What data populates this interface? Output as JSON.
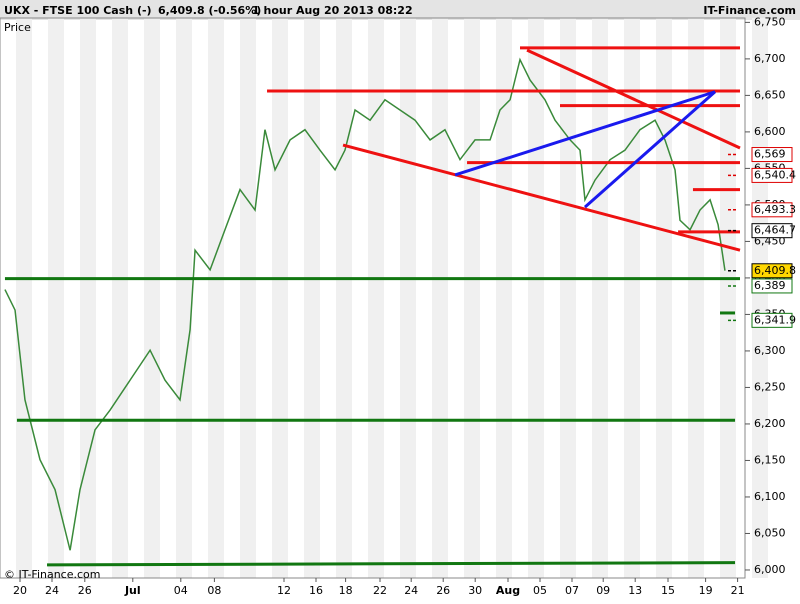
{
  "chart_data": {
    "type": "line",
    "symbol": "UKX - FTSE 100 Cash (-)",
    "quote": "6,409.8 (-0.56%)",
    "period": "1 hour  Aug 20 2013 08:22",
    "brand": "IT-Finance.com",
    "y_label": "Price",
    "copyright": "© IT-Finance.com",
    "xlim": [
      0,
      46.5
    ],
    "ylim": [
      5989,
      6756
    ],
    "xticks": [
      {
        "value": 1.25,
        "label": "20"
      },
      {
        "value": 3.25,
        "label": "24"
      },
      {
        "value": 5.3,
        "label": "26"
      },
      {
        "value": 8.3,
        "label": "Jul"
      },
      {
        "value": 11.3,
        "label": "04"
      },
      {
        "value": 13.4,
        "label": "08"
      },
      {
        "value": 17.75,
        "label": "12"
      },
      {
        "value": 19.75,
        "label": "16"
      },
      {
        "value": 21.6,
        "label": "18"
      },
      {
        "value": 23.75,
        "label": "22"
      },
      {
        "value": 25.7,
        "label": "24"
      },
      {
        "value": 27.7,
        "label": "26"
      },
      {
        "value": 29.7,
        "label": "30"
      },
      {
        "value": 31.75,
        "label": "Aug"
      },
      {
        "value": 33.75,
        "label": "05"
      },
      {
        "value": 35.75,
        "label": "07"
      },
      {
        "value": 37.7,
        "label": "09"
      },
      {
        "value": 39.7,
        "label": "13"
      },
      {
        "value": 41.75,
        "label": "15"
      },
      {
        "value": 44.1,
        "label": "19"
      },
      {
        "value": 46.1,
        "label": "21"
      }
    ],
    "yticks": [
      {
        "value": 6000,
        "label": "6,000"
      },
      {
        "value": 6050,
        "label": "6,050"
      },
      {
        "value": 6100,
        "label": "6,100"
      },
      {
        "value": 6150,
        "label": "6,150"
      },
      {
        "value": 6200,
        "label": "6,200"
      },
      {
        "value": 6250,
        "label": "6,250"
      },
      {
        "value": 6300,
        "label": "6,300"
      },
      {
        "value": 6350,
        "label": "6,350"
      },
      {
        "value": 6400,
        "label": "6,400"
      },
      {
        "value": 6450,
        "label": "6,450"
      },
      {
        "value": 6500,
        "label": "6,500"
      },
      {
        "value": 6550,
        "label": "6,550"
      },
      {
        "value": 6600,
        "label": "6,600"
      },
      {
        "value": 6650,
        "label": "6,650"
      },
      {
        "value": 6700,
        "label": "6,700"
      },
      {
        "value": 6750,
        "label": "6,750"
      }
    ],
    "series": [
      {
        "color": "#3a8a3a",
        "x": [
          0.31,
          0.94,
          1.56,
          2.5,
          3.44,
          4.38,
          5,
          5.94,
          6.88,
          8.13,
          9.38,
          10.31,
          11.25,
          11.88,
          12.19,
          13.13,
          14.06,
          15,
          15.94,
          16.56,
          17.19,
          18.13,
          19.06,
          20,
          20.94,
          21.56,
          22.19,
          23.13,
          24.06,
          25,
          25.94,
          26.88,
          27.81,
          28.75,
          29.69,
          30.63,
          31.25,
          31.88,
          32.5,
          33.13,
          34.06,
          34.69,
          35.63,
          36.25,
          36.56,
          37.19,
          38.13,
          39.06,
          40,
          40.94,
          41.56,
          42.19,
          42.5,
          43.13,
          43.75,
          44.38,
          44.88,
          45.31
        ],
        "values": [
          6384,
          6356,
          6233,
          6151,
          6110,
          6027,
          6110,
          6192,
          6219,
          6260,
          6301,
          6260,
          6233,
          6329,
          6438,
          6411,
          6466,
          6521,
          6493,
          6603,
          6548,
          6589,
          6603,
          6575,
          6548,
          6575,
          6630,
          6616,
          6644,
          6630,
          6616,
          6589,
          6603,
          6562,
          6589,
          6589,
          6630,
          6644,
          6699,
          6671,
          6644,
          6616,
          6589,
          6575,
          6507,
          6534,
          6562,
          6575,
          6603,
          6616,
          6589,
          6548,
          6479,
          6466,
          6493,
          6507,
          6473,
          6410
        ]
      }
    ],
    "trendlines": [
      {
        "x": [
          16.69,
          46.25
        ],
        "y": [
          6656,
          6656
        ],
        "color": "#ee1111"
      },
      {
        "x": [
          32.5,
          46.25
        ],
        "y": [
          6715,
          6715
        ],
        "color": "#ee1111"
      },
      {
        "x": [
          32.94,
          46.25
        ],
        "y": [
          6712,
          6578
        ],
        "color": "#ee1111"
      },
      {
        "x": [
          35,
          46.25
        ],
        "y": [
          6636,
          6636
        ],
        "color": "#ee1111"
      },
      {
        "x": [
          21.44,
          46.25
        ],
        "y": [
          6582,
          6438
        ],
        "color": "#ee1111"
      },
      {
        "x": [
          29.19,
          46.25
        ],
        "y": [
          6558,
          6558
        ],
        "color": "#ee1111"
      },
      {
        "x": [
          43.31,
          46.25
        ],
        "y": [
          6521,
          6521
        ],
        "color": "#ee1111"
      },
      {
        "x": [
          42.38,
          46.25
        ],
        "y": [
          6463,
          6463
        ],
        "color": "#ee1111"
      },
      {
        "x": [
          28.44,
          44.69
        ],
        "y": [
          6541,
          6655
        ],
        "color": "#1a1aee"
      },
      {
        "x": [
          36.56,
          44.69
        ],
        "y": [
          6497,
          6655
        ],
        "color": "#1a1aee"
      },
      {
        "x": [
          0.31,
          46.25
        ],
        "y": [
          6399,
          6399
        ],
        "color": "#117711"
      },
      {
        "x": [
          1.06,
          45.94
        ],
        "y": [
          6205,
          6205
        ],
        "color": "#117711"
      },
      {
        "x": [
          2.94,
          45.94
        ],
        "y": [
          6007,
          6010
        ],
        "color": "#117711"
      },
      {
        "x": [
          45,
          45.94
        ],
        "y": [
          6352,
          6352
        ],
        "color": "#117711"
      }
    ],
    "price_labels": [
      {
        "value": 6569,
        "label": "6,569",
        "color": "#dd0000",
        "background": "#ffffff"
      },
      {
        "value": 6540.4,
        "label": "6,540.4",
        "color": "#dd0000",
        "background": "#ffffff"
      },
      {
        "value": 6493.3,
        "label": "6,493.3",
        "color": "#dd0000",
        "background": "#ffffff"
      },
      {
        "value": 6464.7,
        "label": "6,464.7",
        "color": "#000000",
        "background": "#ffffff"
      },
      {
        "value": 6409.8,
        "label": "6,409.8",
        "color": "#000000",
        "background": "#ffd700"
      },
      {
        "value": 6389,
        "label": "6,389",
        "color": "#117711",
        "background": "#ffffff"
      },
      {
        "value": 6341.9,
        "label": "6,341.9",
        "color": "#117711",
        "background": "#ffffff"
      }
    ]
  }
}
